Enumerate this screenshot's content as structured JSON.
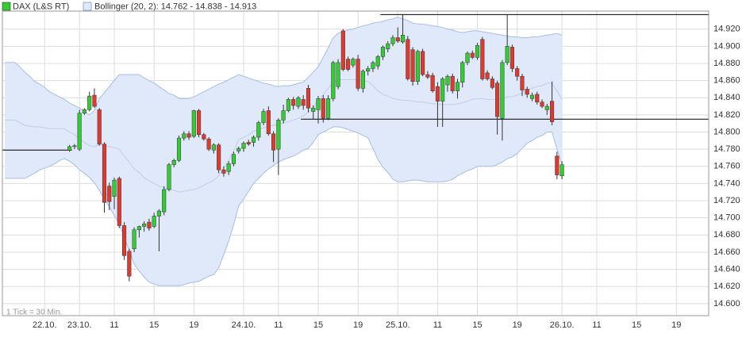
{
  "chart_data": {
    "type": "candlestick",
    "categories": [
      null,
      null,
      null,
      null,
      null,
      null,
      null,
      null,
      "22.10.",
      null,
      null,
      null,
      null,
      null,
      null,
      "23.10.",
      null,
      null,
      null,
      null,
      null,
      null,
      "11",
      null,
      null,
      null,
      null,
      null,
      null,
      null,
      "15",
      null,
      null,
      null,
      null,
      null,
      null,
      null,
      "19",
      null,
      null,
      null,
      null,
      null,
      null,
      null,
      null,
      null,
      "24.10.",
      null,
      null,
      null,
      null,
      null,
      null,
      "11",
      null,
      null,
      null,
      null,
      null,
      null,
      null,
      "15",
      null,
      null,
      null,
      null,
      null,
      null,
      null,
      "19",
      null,
      null,
      null,
      null,
      null,
      null,
      null,
      "25.10.",
      null,
      null,
      null,
      null,
      null,
      null,
      null,
      "11",
      null,
      null,
      null,
      null,
      null,
      null,
      null,
      "15",
      null,
      null,
      null,
      null,
      null,
      null,
      null,
      "19",
      null,
      null,
      null,
      null,
      null,
      null,
      null,
      null,
      "26.10.",
      null,
      null,
      null,
      null,
      null,
      null,
      "11",
      null,
      null,
      null,
      null,
      null,
      null,
      null,
      "15",
      null,
      null,
      null,
      null,
      null,
      null,
      null,
      "19",
      null,
      null,
      null,
      null,
      null,
      null
    ],
    "series": [
      {
        "name": "DAX (L&S RT)",
        "up_color": "#33cc33",
        "down_color": "#e03a2e",
        "open": [
          null,
          null,
          null,
          null,
          null,
          null,
          null,
          null,
          null,
          null,
          null,
          null,
          null,
          14779,
          14783,
          14780,
          14822,
          14826,
          14843,
          14826,
          14786,
          14737,
          14725,
          14746,
          14691,
          14661,
          14664,
          14686,
          14690,
          14695,
          14690,
          14702,
          14707,
          14733,
          14762,
          14767,
          14793,
          14798,
          14795,
          14825,
          14797,
          14792,
          14779,
          14785,
          14756,
          14754,
          14763,
          14778,
          14781,
          14788,
          14788,
          14794,
          14811,
          14825,
          14798,
          14780,
          14814,
          14825,
          14838,
          14830,
          14838,
          14851,
          14824,
          14826,
          14839,
          14816,
          14839,
          14853,
          14918,
          14885,
          14878,
          14885,
          14851,
          14871,
          14874,
          14877,
          14888,
          14897,
          14903,
          14910,
          14905,
          14908,
          14896,
          14859,
          14894,
          14867,
          14866,
          14853,
          14836,
          14855,
          14865,
          14848,
          14858,
          14881,
          14892,
          14887,
          14908,
          14869,
          14862,
          14857,
          14816,
          14881,
          14899,
          14874,
          14865,
          14850,
          14839,
          14844,
          14835,
          14826,
          14836,
          14772,
          14749,
          null,
          null,
          null,
          null,
          null,
          null,
          null,
          null,
          null,
          null,
          null,
          null,
          null,
          null,
          null,
          null,
          null,
          null,
          null,
          null,
          null,
          null,
          null,
          null,
          null,
          null,
          null,
          null,
          null
        ],
        "high": [
          null,
          null,
          null,
          null,
          null,
          null,
          null,
          null,
          null,
          null,
          null,
          null,
          null,
          14785,
          14786,
          14826,
          14828,
          14847,
          14851,
          14828,
          14788,
          14741,
          14747,
          14748,
          14695,
          14664,
          14689,
          14691,
          14696,
          14699,
          14706,
          14710,
          14737,
          14764,
          14769,
          14796,
          14801,
          14801,
          14826,
          14827,
          14799,
          14794,
          14787,
          14787,
          14760,
          14766,
          14777,
          14783,
          14789,
          14791,
          14796,
          14813,
          14827,
          14830,
          14801,
          14816,
          14832,
          14840,
          14841,
          14842,
          14843,
          14855,
          14831,
          14842,
          14843,
          14843,
          14883,
          14885,
          14920,
          14888,
          14887,
          14890,
          14873,
          14877,
          14883,
          14890,
          14901,
          14906,
          14913,
          14922,
          14937,
          14912,
          14899,
          14896,
          14897,
          14871,
          14869,
          14858,
          14864,
          14867,
          14868,
          14862,
          14883,
          14894,
          14895,
          14904,
          14911,
          14872,
          14865,
          14860,
          14884,
          14937,
          14902,
          14877,
          14868,
          14853,
          14846,
          14847,
          14838,
          14833,
          14859,
          14777,
          14766,
          null,
          null,
          null,
          null,
          null,
          null,
          null,
          null,
          null,
          null,
          null,
          null,
          null,
          null,
          null,
          null,
          null,
          null,
          null,
          null,
          null,
          null,
          null,
          null,
          null,
          null,
          null,
          null,
          null
        ],
        "low": [
          null,
          null,
          null,
          null,
          null,
          null,
          null,
          null,
          null,
          null,
          null,
          null,
          null,
          14777,
          14780,
          14778,
          14820,
          14824,
          14828,
          14784,
          14706,
          14709,
          14710,
          14688,
          14651,
          14626,
          14660,
          14677,
          14684,
          14685,
          14688,
          14661,
          14703,
          14731,
          14759,
          14765,
          14790,
          14791,
          14793,
          14794,
          14790,
          14778,
          14775,
          14752,
          14748,
          14750,
          14760,
          14775,
          14777,
          14784,
          14783,
          14790,
          14808,
          14796,
          14765,
          14750,
          14810,
          14823,
          14826,
          14827,
          14826,
          14823,
          14815,
          14810,
          14811,
          14814,
          14836,
          14850,
          14871,
          14871,
          14875,
          14848,
          14846,
          14866,
          14870,
          14873,
          14884,
          14893,
          14900,
          14904,
          14903,
          14860,
          14854,
          14855,
          14865,
          14862,
          14846,
          14806,
          14806,
          14847,
          14845,
          14839,
          14852,
          14878,
          14885,
          14884,
          14860,
          14860,
          14850,
          14797,
          14790,
          14878,
          14870,
          14860,
          14842,
          14840,
          14836,
          14832,
          14828,
          14820,
          14808,
          14745,
          14745,
          null,
          null,
          null,
          null,
          null,
          null,
          null,
          null,
          null,
          null,
          null,
          null,
          null,
          null,
          null,
          null,
          null,
          null,
          null,
          null,
          null,
          null,
          null,
          null,
          null,
          null,
          null,
          null,
          null
        ],
        "close": [
          null,
          null,
          null,
          null,
          null,
          null,
          null,
          null,
          null,
          null,
          null,
          null,
          null,
          14783,
          14784,
          14822,
          14826,
          14842,
          14830,
          14786,
          14718,
          14719,
          14744,
          14691,
          14656,
          14632,
          14686,
          14690,
          14693,
          14688,
          14702,
          14708,
          14733,
          14762,
          14767,
          14793,
          14798,
          14794,
          14825,
          14797,
          14792,
          14780,
          14785,
          14756,
          14752,
          14763,
          14774,
          14781,
          14787,
          14786,
          14794,
          14811,
          14824,
          14798,
          14779,
          14814,
          14825,
          14838,
          14831,
          14840,
          14831,
          14828,
          14828,
          14839,
          14816,
          14839,
          14881,
          14881,
          14873,
          14873,
          14885,
          14851,
          14871,
          14874,
          14881,
          14888,
          14899,
          14903,
          14910,
          14906,
          14913,
          14862,
          14859,
          14894,
          14867,
          14864,
          14848,
          14836,
          14862,
          14865,
          14848,
          14858,
          14881,
          14892,
          14887,
          14901,
          14862,
          14862,
          14852,
          14818,
          14881,
          14900,
          14874,
          14865,
          14849,
          14844,
          14843,
          14835,
          14830,
          14830,
          14812,
          14750,
          14762,
          null,
          null,
          null,
          null,
          null,
          null,
          null,
          null,
          null,
          null,
          null,
          null,
          null,
          null,
          null,
          null,
          null,
          null,
          null,
          null,
          null,
          null,
          null,
          null,
          null,
          null,
          null,
          null,
          null
        ]
      }
    ],
    "bands": {
      "name": "Bollinger (20, 2): 14.762 - 14.838 - 14.913",
      "color": "#dfe9f9",
      "line_color": "#a6bde3",
      "upper": [
        14881,
        14881,
        14881,
        14876,
        14870,
        14865,
        14859,
        14856,
        14852,
        14847,
        14844,
        14841,
        14838,
        14834,
        14831,
        14828,
        14824,
        14820,
        14825,
        14839,
        14846,
        14853,
        14860,
        14867,
        14867,
        14867,
        14867,
        14867,
        14863,
        14860,
        14857,
        14853,
        14849,
        14845,
        14843,
        14839,
        14839,
        14839,
        14841,
        14844,
        14847,
        14850,
        14853,
        14856,
        14858,
        14861,
        14864,
        14867,
        14865,
        14863,
        14861,
        14859,
        14857,
        14856,
        14854,
        14853,
        14854,
        14854,
        14855,
        14857,
        14858,
        14864,
        14870,
        14876,
        14887,
        14898,
        14910,
        14915,
        14917,
        14919,
        14920,
        14922,
        14924,
        14925,
        14927,
        14928,
        14929,
        14931,
        14932,
        14934,
        14932,
        14930,
        14927,
        14926,
        14926,
        14925,
        14924,
        14923,
        14922,
        14920,
        14919,
        14917,
        14916,
        14917,
        14918,
        14918,
        14917,
        14916,
        14915,
        14914,
        14913,
        14912,
        14911,
        14911,
        14910,
        14910,
        14911,
        14911,
        14912,
        14913,
        14914,
        14915,
        14913,
        null,
        null,
        null,
        null,
        null,
        null,
        null,
        null,
        null,
        null,
        null,
        null,
        null,
        null,
        null,
        null,
        null,
        null,
        null,
        null,
        null,
        null,
        null,
        null,
        null,
        null,
        null,
        null,
        null
      ],
      "middle": [
        14814,
        14814,
        14814,
        14811,
        14808,
        14807,
        14806,
        14806,
        14805,
        14804,
        14804,
        14804,
        14804,
        14800,
        14797,
        14792,
        14788,
        14784,
        14783,
        14786,
        14784,
        14783,
        14782,
        14780,
        14772,
        14765,
        14757,
        14753,
        14747,
        14743,
        14740,
        14737,
        14735,
        14733,
        14732,
        14730,
        14731,
        14732,
        14733,
        14735,
        14738,
        14741,
        14744,
        14749,
        14758,
        14767,
        14778,
        14791,
        14794,
        14797,
        14801,
        14803,
        14805,
        14807,
        14808,
        14809,
        14811,
        14812,
        14814,
        14816,
        14819,
        14823,
        14829,
        14837,
        14844,
        14851,
        14858,
        14861,
        14861,
        14861,
        14861,
        14861,
        14860,
        14859,
        14854,
        14848,
        14844,
        14842,
        14839,
        14838,
        14837,
        14837,
        14836,
        14835,
        14835,
        14834,
        14833,
        14833,
        14832,
        14832,
        14832,
        14833,
        14834,
        14836,
        14838,
        14839,
        14839,
        14838,
        14838,
        14838,
        14839,
        14841,
        14841,
        14843,
        14846,
        14849,
        14851,
        14853,
        14854,
        14857,
        14857,
        14848,
        14838,
        null,
        null,
        null,
        null,
        null,
        null,
        null,
        null,
        null,
        null,
        null,
        null,
        null,
        null,
        null,
        null,
        null,
        null,
        null,
        null,
        null,
        null,
        null,
        null,
        null,
        null,
        null,
        null,
        null
      ],
      "lower": [
        14746,
        14746,
        14746,
        14746,
        14746,
        14749,
        14752,
        14756,
        14758,
        14760,
        14763,
        14767,
        14769,
        14766,
        14762,
        14756,
        14752,
        14747,
        14741,
        14732,
        14722,
        14713,
        14703,
        14693,
        14677,
        14662,
        14646,
        14638,
        14631,
        14625,
        14623,
        14621,
        14621,
        14621,
        14621,
        14621,
        14622,
        14624,
        14625,
        14626,
        14629,
        14632,
        14634,
        14642,
        14657,
        14673,
        14692,
        14714,
        14722,
        14731,
        14740,
        14746,
        14752,
        14757,
        14761,
        14765,
        14768,
        14770,
        14772,
        14775,
        14779,
        14781,
        14788,
        14797,
        14800,
        14803,
        14806,
        14806,
        14805,
        14803,
        14801,
        14799,
        14796,
        14793,
        14781,
        14768,
        14759,
        14753,
        14745,
        14742,
        14742,
        14743,
        14744,
        14744,
        14743,
        14742,
        14742,
        14742,
        14742,
        14743,
        14745,
        14749,
        14752,
        14755,
        14757,
        14760,
        14760,
        14760,
        14760,
        14762,
        14765,
        14769,
        14771,
        14775,
        14781,
        14787,
        14790,
        14794,
        14796,
        14800,
        14800,
        14780,
        14762,
        null,
        null,
        null,
        null,
        null,
        null,
        null,
        null,
        null,
        null,
        null,
        null,
        null,
        null,
        null,
        null,
        null,
        null,
        null,
        null,
        null,
        null,
        null,
        null,
        null,
        null,
        null,
        null,
        null
      ]
    },
    "hlines": [
      {
        "value": 14937,
        "start": 76,
        "end": 141
      },
      {
        "value": 14815,
        "start": 60,
        "end": 141
      },
      {
        "value": 14779,
        "start": 0,
        "end": 13
      }
    ],
    "ylim": [
      14586,
      14941
    ],
    "yticks": [
      {
        "value": 14600,
        "label": "14.600"
      },
      {
        "value": 14620,
        "label": "14.620"
      },
      {
        "value": 14640,
        "label": "14.640"
      },
      {
        "value": 14660,
        "label": "14.660"
      },
      {
        "value": 14680,
        "label": "14.680"
      },
      {
        "value": 14700,
        "label": "14.700"
      },
      {
        "value": 14720,
        "label": "14.720"
      },
      {
        "value": 14740,
        "label": "14.740"
      },
      {
        "value": 14760,
        "label": "14.760"
      },
      {
        "value": 14780,
        "label": "14.780"
      },
      {
        "value": 14800,
        "label": "14.800"
      },
      {
        "value": 14820,
        "label": "14.820"
      },
      {
        "value": 14840,
        "label": "14.840"
      },
      {
        "value": 14860,
        "label": "14.860"
      },
      {
        "value": 14880,
        "label": "14.880"
      },
      {
        "value": 14900,
        "label": "14.900"
      },
      {
        "value": 14920,
        "label": "14.920"
      }
    ],
    "grid": true,
    "note": "1 Tick = 30 Min."
  }
}
